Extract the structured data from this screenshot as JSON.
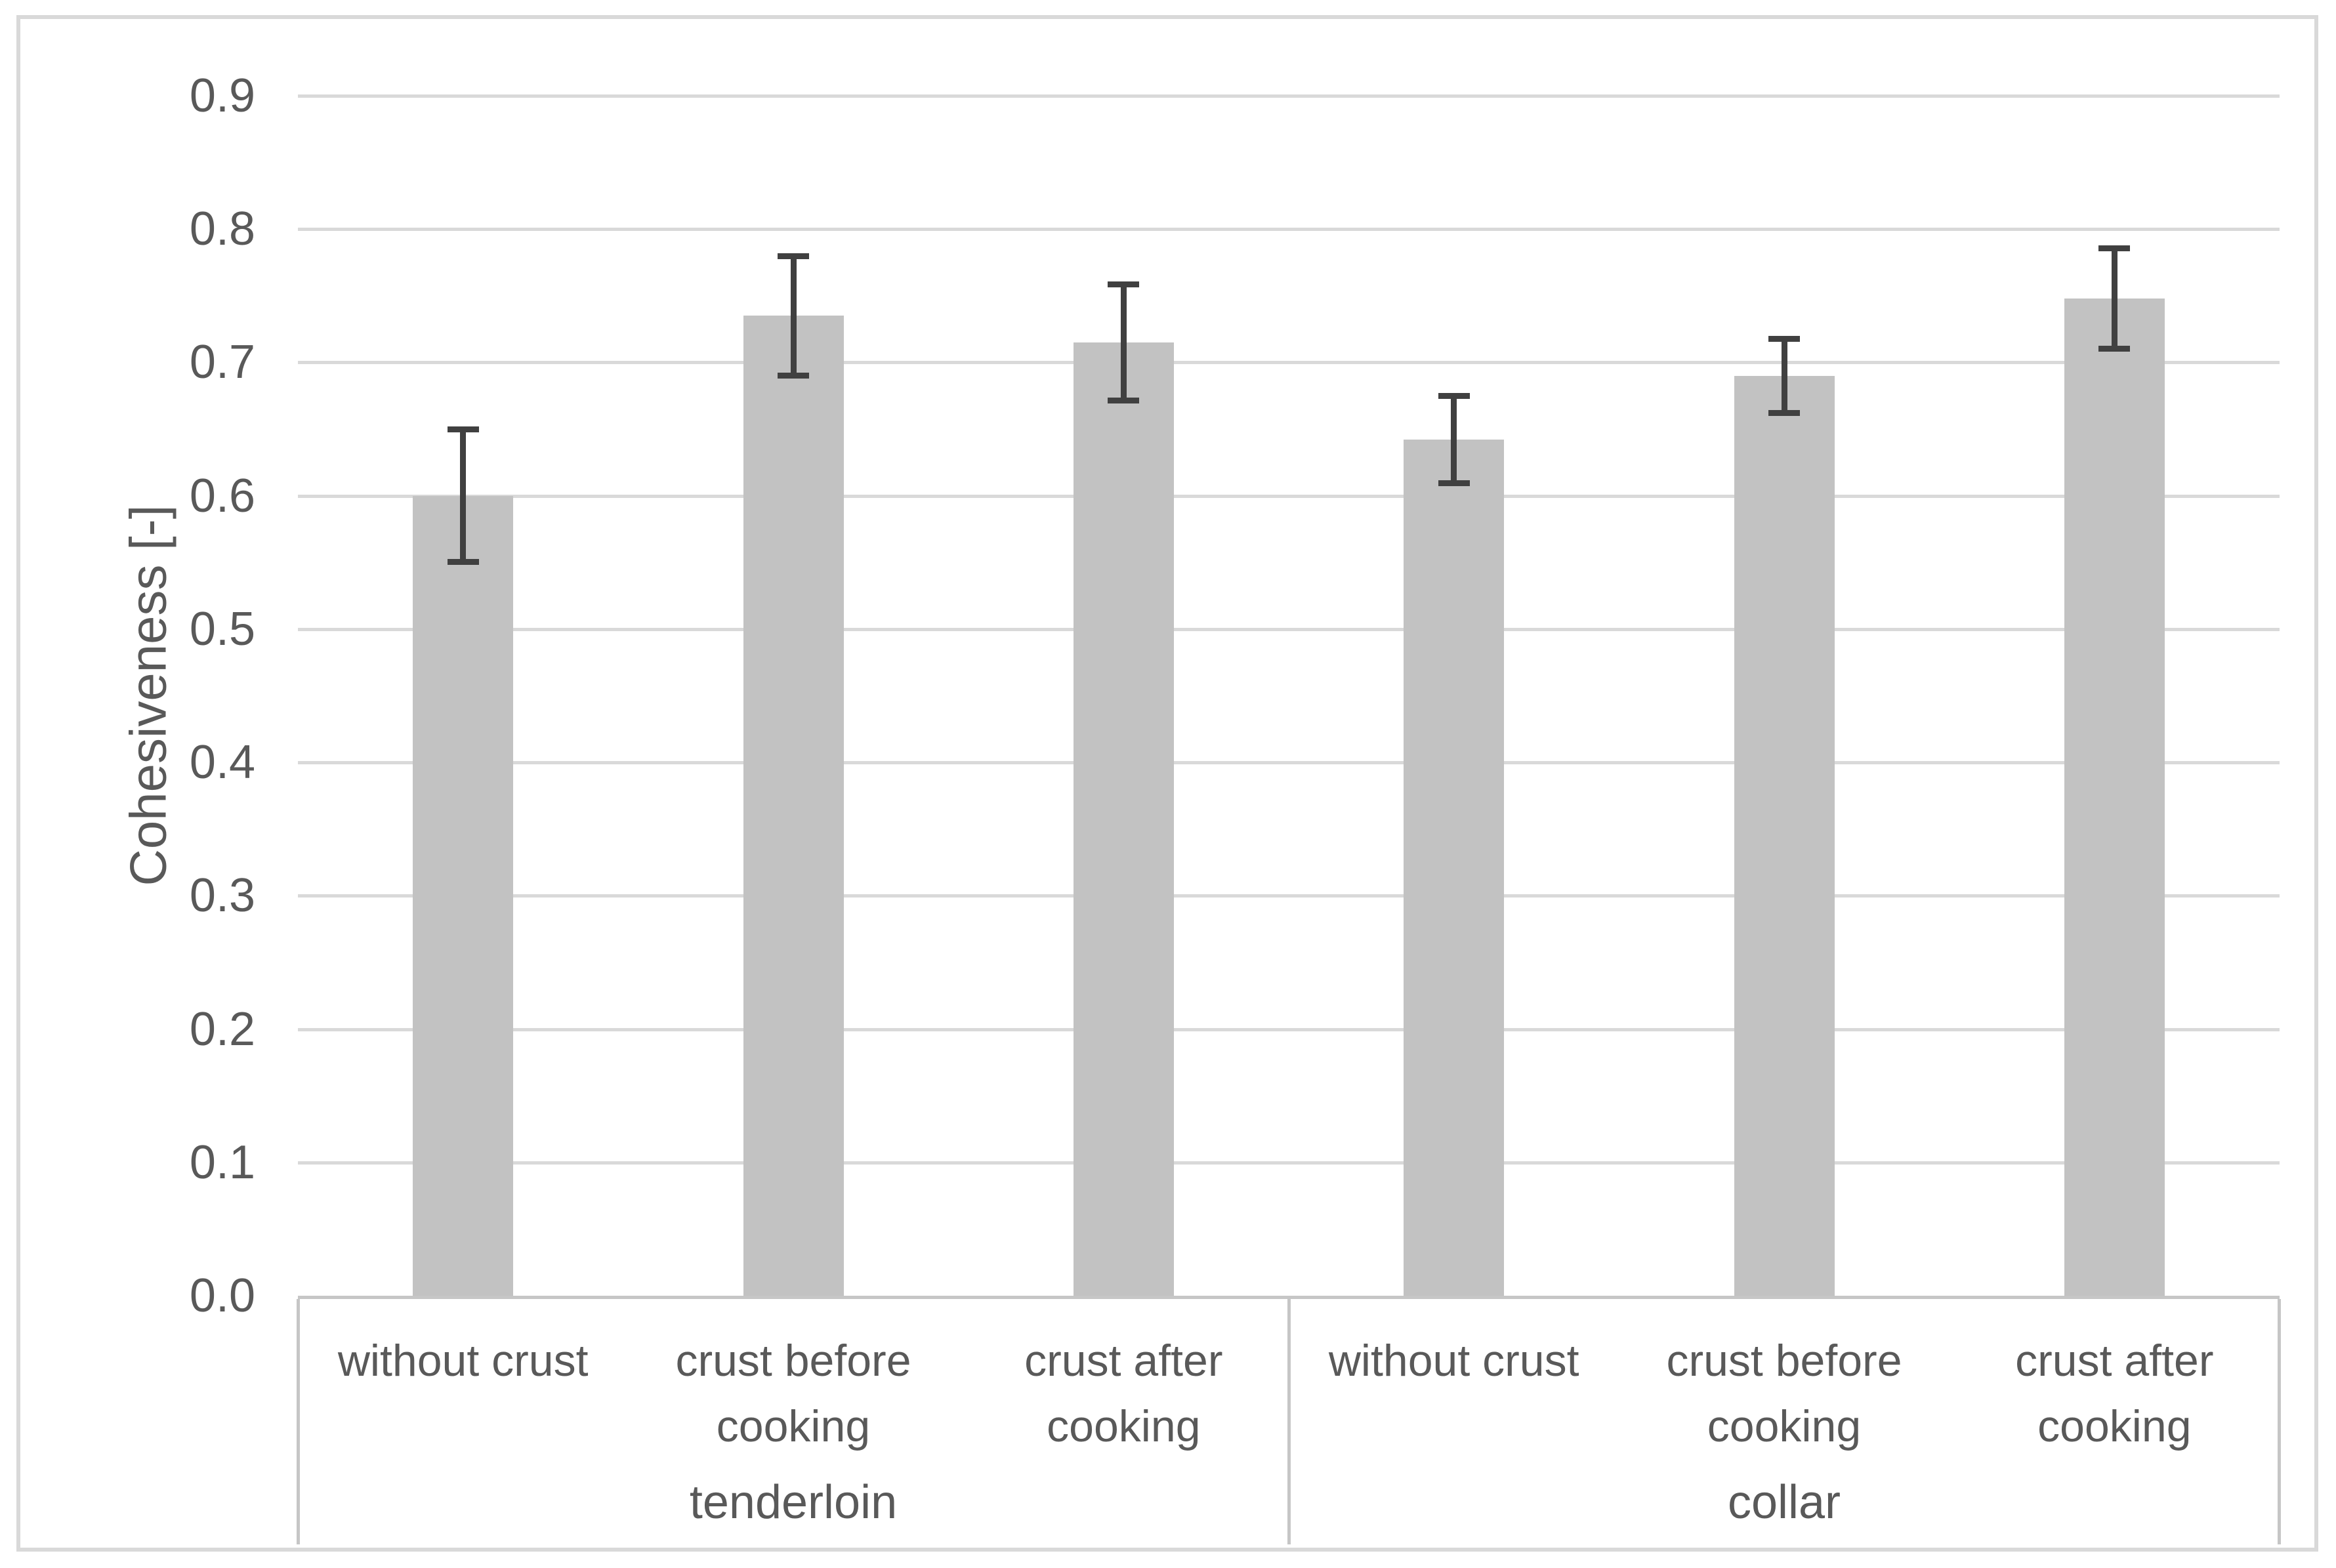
{
  "chart_data": {
    "type": "bar",
    "title": "",
    "ylabel": "Cohesiveness [-]",
    "xlabel": "",
    "ylim": [
      0,
      0.9
    ],
    "yticks": [
      "0.0",
      "0.1",
      "0.2",
      "0.3",
      "0.4",
      "0.5",
      "0.6",
      "0.7",
      "0.8",
      "0.9"
    ],
    "grid": true,
    "legend_position": "none",
    "groups": [
      {
        "label": "tenderloin",
        "categories": [
          "without crust",
          "crust before cooking",
          "crust after cooking"
        ],
        "values": [
          0.6,
          0.735,
          0.715
        ],
        "errors": [
          0.05,
          0.045,
          0.044
        ]
      },
      {
        "label": "collar",
        "categories": [
          "without crust",
          "crust before cooking",
          "crust after cooking"
        ],
        "values": [
          0.642,
          0.69,
          0.748
        ],
        "errors": [
          0.033,
          0.028,
          0.038
        ]
      }
    ],
    "colors": {
      "bar_fill": "#c2c2c2",
      "error_bar": "#404040",
      "gridline": "#d9d9d9",
      "axis_line": "#c6c6c6",
      "text": "#595959",
      "chart_border": "#d9d9d9",
      "background": "#ffffff"
    }
  }
}
